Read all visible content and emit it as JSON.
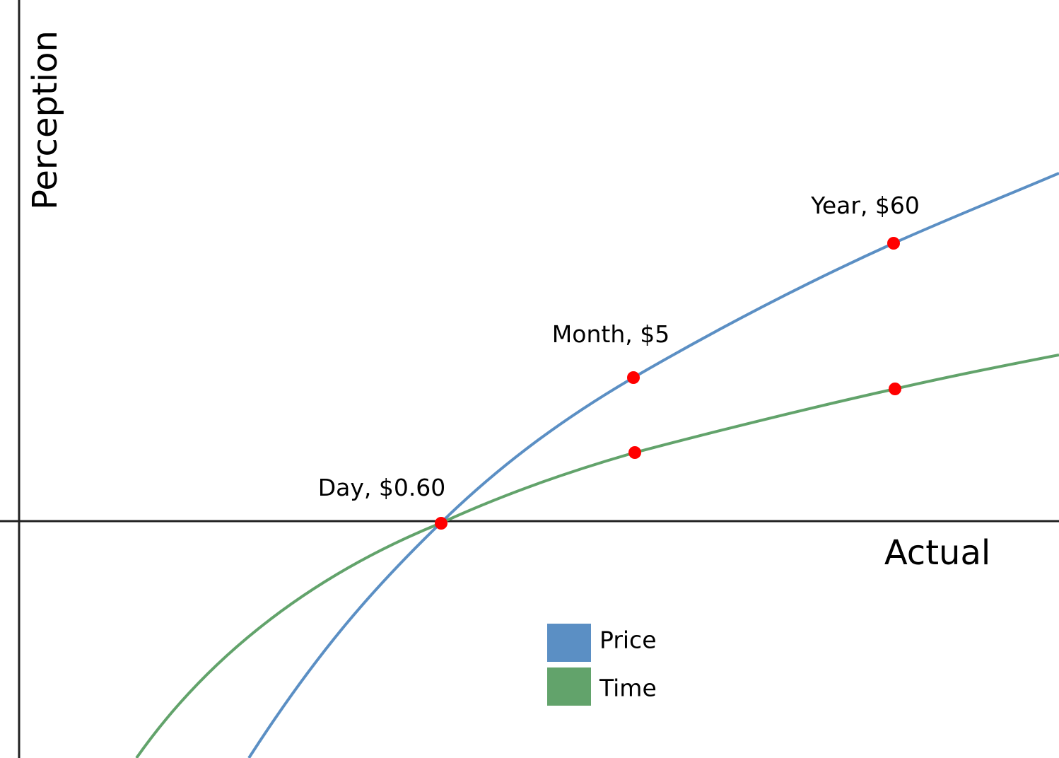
{
  "axes": {
    "y_label": "Perception",
    "x_label": "Actual"
  },
  "points": [
    {
      "label": "Day, $0.60"
    },
    {
      "label": "Month, $5"
    },
    {
      "label": "Year, $60"
    }
  ],
  "legend": [
    {
      "name": "Price",
      "color": "#5b8fc4"
    },
    {
      "name": "Time",
      "color": "#62a36b"
    }
  ]
}
